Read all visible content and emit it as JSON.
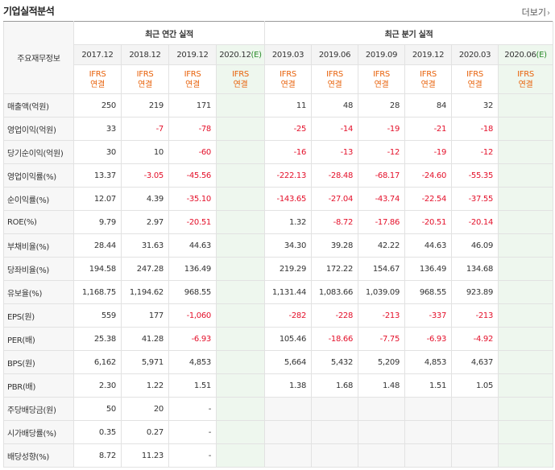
{
  "header": {
    "title": "기업실적분석",
    "more_label": "더보기"
  },
  "table": {
    "corner_label": "주요재무정보",
    "annual_group_label": "최근 연간 실적",
    "quarter_group_label": "최근 분기 실적",
    "annual_periods": [
      "2017.12",
      "2018.12",
      "2019.12"
    ],
    "annual_estimate": {
      "period": "2020.12",
      "mark": "(E)"
    },
    "quarter_periods": [
      "2019.03",
      "2019.06",
      "2019.09",
      "2019.12",
      "2020.03"
    ],
    "quarter_estimate": {
      "period": "2020.06",
      "mark": "(E)"
    },
    "ifrs_line1": "IFRS",
    "ifrs_line2": "연결",
    "rows": [
      {
        "label": "매출액(억원)",
        "annual": [
          "250",
          "219",
          "171"
        ],
        "quarter": [
          "11",
          "48",
          "28",
          "84",
          "32"
        ]
      },
      {
        "label": "영업이익(억원)",
        "annual": [
          "33",
          "-7",
          "-78"
        ],
        "quarter": [
          "-25",
          "-14",
          "-19",
          "-21",
          "-18"
        ]
      },
      {
        "label": "당기순이익(억원)",
        "annual": [
          "30",
          "10",
          "-60"
        ],
        "quarter": [
          "-16",
          "-13",
          "-12",
          "-19",
          "-12"
        ]
      },
      {
        "label": "영업이익률(%)",
        "annual": [
          "13.37",
          "-3.05",
          "-45.56"
        ],
        "quarter": [
          "-222.13",
          "-28.48",
          "-68.17",
          "-24.60",
          "-55.35"
        ]
      },
      {
        "label": "순이익률(%)",
        "annual": [
          "12.07",
          "4.39",
          "-35.10"
        ],
        "quarter": [
          "-143.65",
          "-27.04",
          "-43.74",
          "-22.54",
          "-37.55"
        ]
      },
      {
        "label": "ROE(%)",
        "annual": [
          "9.79",
          "2.97",
          "-20.51"
        ],
        "quarter": [
          "1.32",
          "-8.72",
          "-17.86",
          "-20.51",
          "-20.14"
        ]
      },
      {
        "label": "부채비율(%)",
        "annual": [
          "28.44",
          "31.63",
          "44.63"
        ],
        "quarter": [
          "34.30",
          "39.28",
          "42.22",
          "44.63",
          "46.09"
        ]
      },
      {
        "label": "당좌비율(%)",
        "annual": [
          "194.58",
          "247.28",
          "136.49"
        ],
        "quarter": [
          "219.29",
          "172.22",
          "154.67",
          "136.49",
          "134.68"
        ]
      },
      {
        "label": "유보율(%)",
        "annual": [
          "1,168.75",
          "1,194.62",
          "968.55"
        ],
        "quarter": [
          "1,131.44",
          "1,083.66",
          "1,039.09",
          "968.55",
          "923.89"
        ]
      },
      {
        "label": "EPS(원)",
        "annual": [
          "559",
          "177",
          "-1,060"
        ],
        "quarter": [
          "-282",
          "-228",
          "-213",
          "-337",
          "-213"
        ]
      },
      {
        "label": "PER(배)",
        "annual": [
          "25.38",
          "41.28",
          "-6.93"
        ],
        "quarter": [
          "105.46",
          "-18.66",
          "-7.75",
          "-6.93",
          "-4.92"
        ]
      },
      {
        "label": "BPS(원)",
        "annual": [
          "6,162",
          "5,971",
          "4,853"
        ],
        "quarter": [
          "5,664",
          "5,432",
          "5,209",
          "4,853",
          "4,637"
        ]
      },
      {
        "label": "PBR(배)",
        "annual": [
          "2.30",
          "1.22",
          "1.51"
        ],
        "quarter": [
          "1.38",
          "1.68",
          "1.48",
          "1.51",
          "1.05"
        ]
      },
      {
        "label": "주당배당금(원)",
        "annual": [
          "50",
          "20",
          "-"
        ],
        "quarter": [
          "",
          "",
          "",
          "",
          ""
        ]
      },
      {
        "label": "시가배당률(%)",
        "annual": [
          "0.35",
          "0.27",
          "-"
        ],
        "quarter": [
          "",
          "",
          "",
          "",
          ""
        ]
      },
      {
        "label": "배당성향(%)",
        "annual": [
          "8.72",
          "11.23",
          "-"
        ],
        "quarter": [
          "",
          "",
          "",
          "",
          ""
        ]
      }
    ]
  },
  "colors": {
    "negative": "#e4102a",
    "ifrs": "#e8620b",
    "estimate_mark": "#2a8a2a",
    "estimate_bg": "#eef7ee"
  }
}
